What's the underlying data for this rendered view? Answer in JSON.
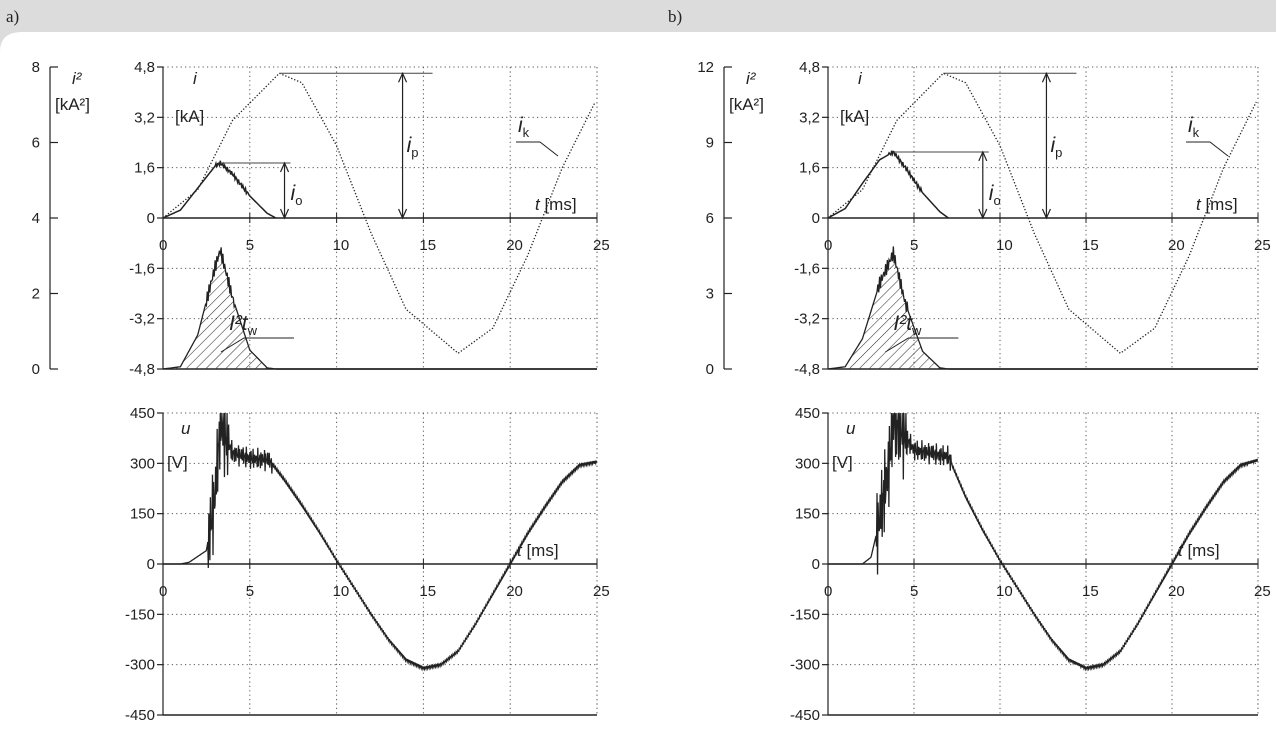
{
  "panel_labels": [
    "a)",
    "b)"
  ],
  "labels": {
    "i2": "i²",
    "i2_unit": "[kA²]",
    "i": "i",
    "i_unit": "[kA]",
    "u": "u",
    "u_unit": "[V]",
    "t_ms": "[ms]",
    "t_sym": "t",
    "i_p": "i",
    "i_p_sub": "p",
    "i_o": "i",
    "i_o_sub": "o",
    "i_k": "i",
    "i_k_sub": "k",
    "I2tw_I": "I²",
    "I2tw_t": "t",
    "I2tw_sub": "w"
  },
  "chart_data": [
    {
      "type": "line",
      "panel": "a)",
      "x_axis": {
        "label": "t [ms]",
        "range": [
          0,
          25
        ],
        "ticks": [
          "0",
          "5",
          "10",
          "15",
          "20",
          "25"
        ]
      },
      "current_axis": {
        "label": "i [kA]",
        "range": [
          -4.8,
          4.8
        ],
        "ticks": [
          "4,8",
          "3,2",
          "1,6",
          "0",
          "-1,6",
          "-3,2",
          "-4,8"
        ]
      },
      "i2_axis": {
        "label": "i² [kA²]",
        "range": [
          0,
          8
        ],
        "ticks": [
          "8",
          "6",
          "4",
          "2",
          "0"
        ]
      },
      "voltage_axis": {
        "label": "u [V]",
        "range": [
          -450,
          450
        ],
        "ticks": [
          "450",
          "300",
          "150",
          "0",
          "-150",
          "-300",
          "-450"
        ]
      },
      "series": [
        {
          "name": "i_k",
          "style": "dotted",
          "peak_kA": 4.6,
          "peak_time_ms": 6.7,
          "trough_kA": -4.3,
          "trough_time_ms": 17.0,
          "x": [
            0,
            2,
            4,
            6.7,
            8,
            10,
            12,
            14,
            17,
            19,
            21,
            23,
            25
          ],
          "y": [
            0,
            0.9,
            3.1,
            4.6,
            4.3,
            2.3,
            -0.5,
            -2.9,
            -4.3,
            -3.5,
            -1.2,
            1.6,
            3.8
          ]
        },
        {
          "name": "i_o",
          "style": "solid",
          "peak_kA": 1.75,
          "peak_time_ms": 3.3,
          "end_time_ms": 6.5,
          "x": [
            0,
            1,
            2,
            3,
            3.3,
            4,
            5,
            6,
            6.5
          ],
          "y": [
            0,
            0.25,
            0.95,
            1.65,
            1.75,
            1.4,
            0.7,
            0.15,
            0
          ]
        },
        {
          "name": "i²",
          "style": "hatched",
          "peak_kA2": 3.15,
          "peak_time_ms": 3.3,
          "x": [
            0,
            1,
            2,
            3,
            3.3,
            4,
            5,
            6,
            6.5
          ],
          "y": [
            0,
            0.06,
            0.9,
            2.7,
            3.15,
            1.9,
            0.5,
            0.03,
            0
          ]
        },
        {
          "name": "u",
          "style": "solid",
          "x": [
            0,
            1,
            1.5,
            2.5,
            3,
            3.3,
            4,
            5,
            6,
            6.2,
            7,
            8,
            9,
            10,
            11,
            12,
            13,
            14,
            15,
            16,
            17,
            18,
            19,
            20,
            21,
            22,
            23,
            24,
            25
          ],
          "y": [
            0,
            0,
            5,
            40,
            200,
            420,
            330,
            315,
            310,
            305,
            250,
            175,
            95,
            10,
            -70,
            -150,
            -225,
            -285,
            -310,
            -300,
            -260,
            -180,
            -90,
            0,
            90,
            170,
            245,
            295,
            305
          ]
        }
      ]
    },
    {
      "type": "line",
      "panel": "b)",
      "x_axis": {
        "label": "t [ms]",
        "range": [
          0,
          25
        ],
        "ticks": [
          "0",
          "5",
          "10",
          "15",
          "20",
          "25"
        ]
      },
      "current_axis": {
        "label": "i [kA]",
        "range": [
          -4.8,
          4.8
        ],
        "ticks": [
          "4,8",
          "3,2",
          "1,6",
          "0",
          "-1,6",
          "-3,2",
          "-4,8"
        ]
      },
      "i2_axis": {
        "label": "i² [kA²]",
        "range": [
          0,
          12
        ],
        "ticks": [
          "12",
          "9",
          "6",
          "3",
          "0"
        ]
      },
      "voltage_axis": {
        "label": "u [V]",
        "range": [
          -450,
          450
        ],
        "ticks": [
          "450",
          "300",
          "150",
          "0",
          "-150",
          "-300",
          "-450"
        ]
      },
      "series": [
        {
          "name": "i_k",
          "style": "dotted",
          "peak_kA": 4.6,
          "peak_time_ms": 6.7,
          "trough_kA": -4.3,
          "trough_time_ms": 17.0,
          "x": [
            0,
            2,
            4,
            6.7,
            8,
            10,
            12,
            14,
            17,
            19,
            21,
            23,
            25
          ],
          "y": [
            0,
            0.9,
            3.1,
            4.6,
            4.3,
            2.3,
            -0.5,
            -2.9,
            -4.3,
            -3.5,
            -1.2,
            1.6,
            3.8
          ]
        },
        {
          "name": "i_o",
          "style": "solid",
          "peak_kA": 2.1,
          "peak_time_ms": 3.8,
          "end_time_ms": 7.0,
          "x": [
            0,
            1,
            2,
            3,
            3.8,
            4.5,
            5.5,
            6.5,
            7
          ],
          "y": [
            0,
            0.3,
            1.1,
            1.85,
            2.1,
            1.6,
            0.8,
            0.2,
            0
          ]
        },
        {
          "name": "i²",
          "style": "hatched",
          "peak_kA2": 4.6,
          "peak_time_ms": 3.8,
          "x": [
            0,
            1,
            2,
            3,
            3.8,
            4.5,
            5.5,
            6.5,
            7
          ],
          "y": [
            0,
            0.09,
            1.2,
            3.4,
            4.6,
            2.6,
            0.7,
            0.05,
            0
          ]
        },
        {
          "name": "u",
          "style": "solid",
          "x": [
            0,
            1,
            2,
            2.5,
            3,
            3.5,
            3.8,
            4.5,
            5,
            6,
            7,
            7.5,
            8,
            9,
            10,
            11,
            12,
            13,
            14,
            15,
            16,
            17,
            18,
            19,
            20,
            21,
            22,
            23,
            24,
            25
          ],
          "y": [
            0,
            0,
            0,
            20,
            130,
            280,
            430,
            380,
            340,
            330,
            320,
            260,
            200,
            100,
            10,
            -70,
            -150,
            -225,
            -285,
            -310,
            -300,
            -260,
            -180,
            -90,
            0,
            90,
            170,
            245,
            295,
            310
          ]
        }
      ]
    }
  ]
}
